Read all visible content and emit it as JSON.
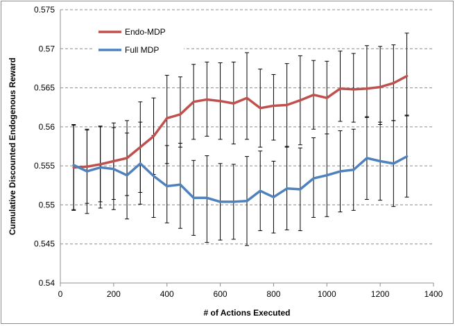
{
  "chart_data": {
    "type": "line",
    "xlabel": "# of Actions Executed",
    "ylabel": "Cumulative Discounted Endogenous Reward",
    "xlim": [
      0,
      1400
    ],
    "ylim": [
      0.54,
      0.575
    ],
    "x_ticks": [
      0,
      200,
      400,
      600,
      800,
      1000,
      1200,
      1400
    ],
    "y_ticks": [
      0.54,
      0.545,
      0.55,
      0.555,
      0.56,
      0.565,
      0.57,
      0.575
    ],
    "y_tick_labels": [
      "0.54",
      "0.545",
      "0.55",
      "0.555",
      "0.56",
      "0.565",
      "0.57",
      "0.575"
    ],
    "grid": "horizontal dashed",
    "legend_position": "top-left",
    "x": [
      50,
      100,
      150,
      200,
      250,
      300,
      350,
      400,
      450,
      500,
      550,
      600,
      650,
      700,
      750,
      800,
      850,
      900,
      950,
      1000,
      1050,
      1100,
      1150,
      1200,
      1250,
      1300
    ],
    "series": [
      {
        "name": "Endo-MDP",
        "color": "#c0504d",
        "values": [
          0.5548,
          0.5549,
          0.5552,
          0.5556,
          0.556,
          0.5574,
          0.5588,
          0.5611,
          0.5616,
          0.5632,
          0.5635,
          0.5633,
          0.563,
          0.5637,
          0.5624,
          0.5627,
          0.5628,
          0.5634,
          0.5641,
          0.5637,
          0.5649,
          0.5648,
          0.5649,
          0.5651,
          0.5656,
          0.5665
        ],
        "err_low": [
          0.5494,
          0.5502,
          0.5504,
          0.5507,
          0.5512,
          0.5516,
          0.5539,
          0.5553,
          0.5574,
          0.5584,
          0.5588,
          0.5584,
          0.5578,
          0.5584,
          0.5574,
          0.5583,
          0.5575,
          0.5577,
          0.5597,
          0.5591,
          0.5607,
          0.5606,
          0.5612,
          0.5603,
          0.5608,
          0.5615
        ],
        "err_high": [
          0.5602,
          0.5597,
          0.56,
          0.5605,
          0.5608,
          0.5632,
          0.5637,
          0.5666,
          0.5664,
          0.568,
          0.5683,
          0.5682,
          0.5683,
          0.5695,
          0.5674,
          0.5667,
          0.5681,
          0.5691,
          0.5685,
          0.5684,
          0.5697,
          0.5694,
          0.5704,
          0.5703,
          0.5705,
          0.572
        ]
      },
      {
        "name": "Full MDP",
        "color": "#4f81bd",
        "values": [
          0.5551,
          0.5543,
          0.5548,
          0.5546,
          0.5538,
          0.5553,
          0.5537,
          0.5524,
          0.5526,
          0.5509,
          0.5509,
          0.5504,
          0.5504,
          0.5505,
          0.5518,
          0.551,
          0.5521,
          0.552,
          0.5534,
          0.5538,
          0.5543,
          0.5545,
          0.556,
          0.5556,
          0.5553,
          0.5562
        ],
        "err_low": [
          0.5493,
          0.5489,
          0.5496,
          0.5494,
          0.5482,
          0.5501,
          0.5484,
          0.5477,
          0.547,
          0.5461,
          0.5452,
          0.5455,
          0.5456,
          0.5448,
          0.5467,
          0.5464,
          0.5468,
          0.5467,
          0.5484,
          0.5485,
          0.5491,
          0.5493,
          0.5507,
          0.5506,
          0.5498,
          0.551
        ],
        "err_high": [
          0.5603,
          0.5596,
          0.5601,
          0.5599,
          0.5592,
          0.5606,
          0.5589,
          0.5576,
          0.5579,
          0.5557,
          0.5563,
          0.5553,
          0.5552,
          0.5562,
          0.5569,
          0.5556,
          0.5574,
          0.5573,
          0.5586,
          0.5591,
          0.5595,
          0.5597,
          0.5613,
          0.5606,
          0.5608,
          0.5614
        ]
      }
    ]
  }
}
